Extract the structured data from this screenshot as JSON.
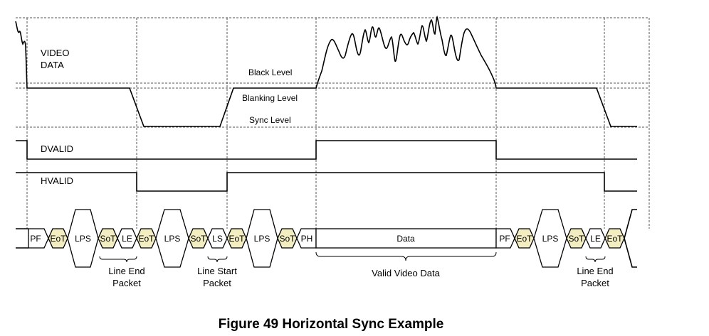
{
  "signals": {
    "video_line1": "VIDEO",
    "video_line2": "DATA",
    "dvalid": "DVALID",
    "hvalid": "HVALID"
  },
  "levels": {
    "black": "Black Level",
    "blanking": "Blanking Level",
    "sync": "Sync Level"
  },
  "packets": {
    "pf": "PF",
    "eot": "EoT",
    "sot": "SoT",
    "lps": "LPS",
    "le": "LE",
    "ls": "LS",
    "ph": "PH",
    "data": "Data"
  },
  "annotations": {
    "line_end_1": "Line End",
    "line_end_2": "Packet",
    "line_start_1": "Line Start",
    "line_start_2": "Packet",
    "valid_video": "Valid Video Data"
  },
  "caption": "Figure 49 Horizontal Sync Example",
  "colors": {
    "eot_sot_fill": "#f3edc2",
    "line": "#000000",
    "grid": "#555555"
  }
}
